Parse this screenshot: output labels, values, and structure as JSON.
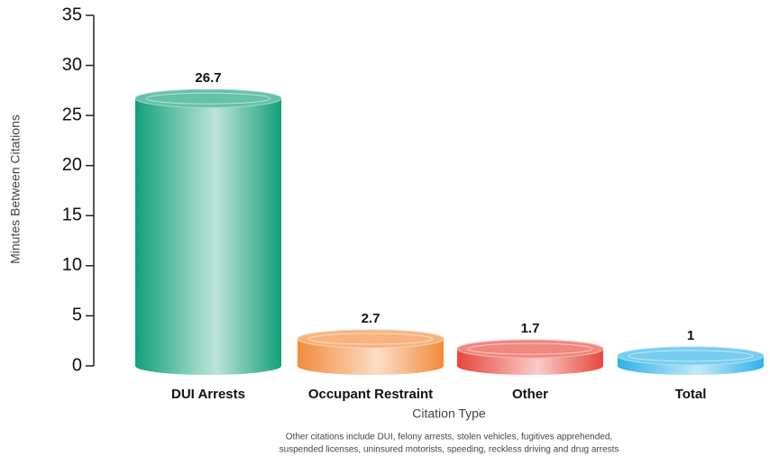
{
  "chart_data": {
    "type": "bar",
    "categories": [
      "DUI Arrests",
      "Occupant Restraint",
      "Other",
      "Total"
    ],
    "values": [
      26.7,
      2.7,
      1.7,
      1.0
    ],
    "colors": [
      "#12a079",
      "#f28a3a",
      "#e8463c",
      "#2eb2e6"
    ],
    "xlabel": "Citation Type",
    "ylabel": "Minutes Between Citations",
    "ylim": [
      0,
      35
    ],
    "yticks": [
      0,
      5,
      10,
      15,
      20,
      25,
      30,
      35
    ],
    "note": [
      "Other citations include DUI, felony arrests, stolen vehicles, fugitives apprehended,",
      "suspended licenses, uninsured motorists, speeding, reckless driving and drug arrests"
    ]
  }
}
